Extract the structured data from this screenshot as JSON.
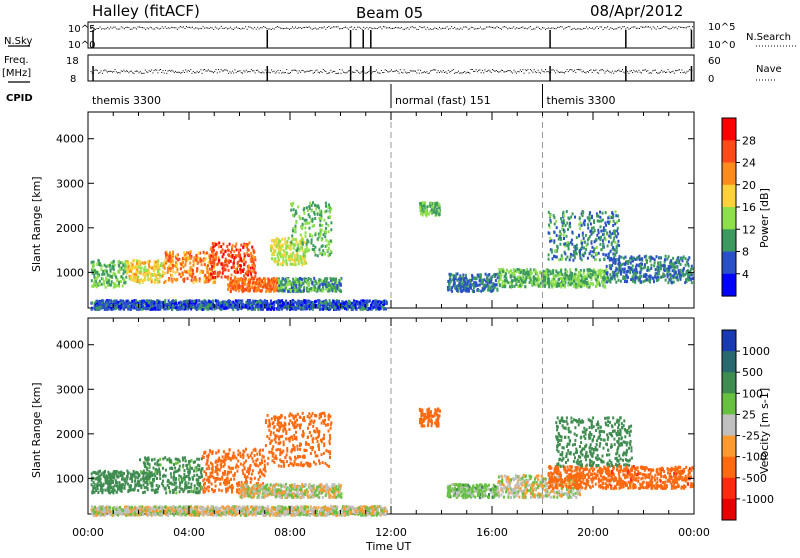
{
  "header": {
    "station": "Halley (fitACF)",
    "beam": "Beam 05",
    "date": "08/Apr/2012"
  },
  "strips": {
    "nsky_label": "N.Sky",
    "nsky_ticks": [
      "10^5",
      "10^0"
    ],
    "nsearch_label": "N.Search",
    "nsearch_ticks": [
      "10^5",
      "10^0"
    ],
    "freq_label": "Freq.",
    "freq_unit": "[MHz]",
    "freq_ticks": [
      "18",
      "8"
    ],
    "nave_label": "Nave",
    "nave_ticks": [
      "60",
      "0"
    ],
    "cpid_label": "CPID",
    "cpid_segments": [
      {
        "label": "themis 3300",
        "start_hour": 0
      },
      {
        "label": "normal (fast) 151",
        "start_hour": 12
      },
      {
        "label": "themis 3300",
        "start_hour": 18
      }
    ],
    "marker_hours": [
      0.2,
      7.1,
      10.4,
      10.9,
      11.2,
      18.3,
      21.3,
      23.9
    ]
  },
  "x_axis": {
    "title": "Time UT",
    "tick_labels": [
      "00:00",
      "04:00",
      "08:00",
      "12:00",
      "16:00",
      "20:00",
      "00:00"
    ],
    "tick_hours": [
      0,
      4,
      8,
      12,
      16,
      20,
      24
    ]
  },
  "power_panel": {
    "ylabel": "Slant Range [km]",
    "cbar_label": "Power [dB]",
    "cbar_ticks": [
      "28",
      "24",
      "20",
      "16",
      "12",
      "8",
      "4"
    ],
    "cbar_colors": [
      "#ff0000",
      "#ff4a1a",
      "#ff8c1a",
      "#ffd23c",
      "#8ee04a",
      "#3c9a60",
      "#2a50c8",
      "#0000ff"
    ]
  },
  "velocity_panel": {
    "ylabel": "Slant Range [km]",
    "cbar_label": "Velocity [m s-1]",
    "cbar_ticks": [
      "1000",
      "500",
      "100",
      "25",
      "-25",
      "-100",
      "-500",
      "-1000"
    ],
    "cbar_colors": [
      "#1a3ab4",
      "#2a6a6e",
      "#3f8c50",
      "#68c040",
      "#c0c0c0",
      "#ff9a30",
      "#ff6a10",
      "#ff2a10",
      "#e80000"
    ]
  },
  "chart_data": {
    "type": "heatmap",
    "x_unit": "hours UT",
    "xlim": [
      0,
      24
    ],
    "ylim": [
      200,
      4600
    ],
    "y_ticks": [
      1000,
      2000,
      3000,
      4000
    ],
    "dashed_hours": [
      12,
      18
    ],
    "power_blobs": [
      {
        "t0": 0.1,
        "t1": 1.5,
        "r0": 700,
        "r1": 1300,
        "val": 12
      },
      {
        "t0": 1.5,
        "t1": 3.0,
        "r0": 800,
        "r1": 1300,
        "val": 18
      },
      {
        "t0": 3.0,
        "t1": 5.0,
        "r0": 800,
        "r1": 1500,
        "val": 22
      },
      {
        "t0": 4.8,
        "t1": 6.6,
        "r0": 900,
        "r1": 1700,
        "val": 26
      },
      {
        "t0": 5.5,
        "t1": 7.5,
        "r0": 600,
        "r1": 900,
        "val": 24
      },
      {
        "t0": 7.2,
        "t1": 8.6,
        "r0": 1200,
        "r1": 1800,
        "val": 16
      },
      {
        "t0": 8.0,
        "t1": 9.6,
        "r0": 1400,
        "r1": 2600,
        "val": 12
      },
      {
        "t0": 7.5,
        "t1": 10.0,
        "r0": 600,
        "r1": 900,
        "val": 10
      },
      {
        "t0": 13.1,
        "t1": 13.9,
        "r0": 2300,
        "r1": 2600,
        "val": 12
      },
      {
        "t0": 14.2,
        "t1": 16.2,
        "r0": 600,
        "r1": 1000,
        "val": 8
      },
      {
        "t0": 16.2,
        "t1": 20.5,
        "r0": 700,
        "r1": 1100,
        "val": 12
      },
      {
        "t0": 18.2,
        "t1": 21.0,
        "r0": 1300,
        "r1": 2400,
        "val": 9
      },
      {
        "t0": 20.5,
        "t1": 23.9,
        "r0": 800,
        "r1": 1400,
        "val": 8
      },
      {
        "t0": 0.1,
        "t1": 11.8,
        "r0": 200,
        "r1": 400,
        "val": 6
      }
    ],
    "velocity_blobs": [
      {
        "t0": 0.1,
        "t1": 2.0,
        "r0": 700,
        "r1": 1200,
        "val": 200
      },
      {
        "t0": 2.0,
        "t1": 4.5,
        "r0": 700,
        "r1": 1500,
        "val": 150
      },
      {
        "t0": 4.5,
        "t1": 7.0,
        "r0": 700,
        "r1": 1700,
        "val": -300
      },
      {
        "t0": 7.0,
        "t1": 9.6,
        "r0": 1300,
        "r1": 2500,
        "val": -400
      },
      {
        "t0": 6.0,
        "t1": 10.0,
        "r0": 600,
        "r1": 900,
        "val": 0
      },
      {
        "t0": 13.1,
        "t1": 13.9,
        "r0": 2200,
        "r1": 2600,
        "val": -400
      },
      {
        "t0": 14.2,
        "t1": 16.2,
        "r0": 600,
        "r1": 900,
        "val": 50
      },
      {
        "t0": 16.2,
        "t1": 19.5,
        "r0": 600,
        "r1": 1100,
        "val": 0
      },
      {
        "t0": 18.2,
        "t1": 20.5,
        "r0": 800,
        "r1": 1300,
        "val": -350
      },
      {
        "t0": 18.5,
        "t1": 21.5,
        "r0": 1300,
        "r1": 2400,
        "val": 180
      },
      {
        "t0": 20.5,
        "t1": 23.9,
        "r0": 800,
        "r1": 1300,
        "val": -450
      },
      {
        "t0": 0.1,
        "t1": 11.8,
        "r0": 200,
        "r1": 400,
        "val": 0
      }
    ]
  }
}
